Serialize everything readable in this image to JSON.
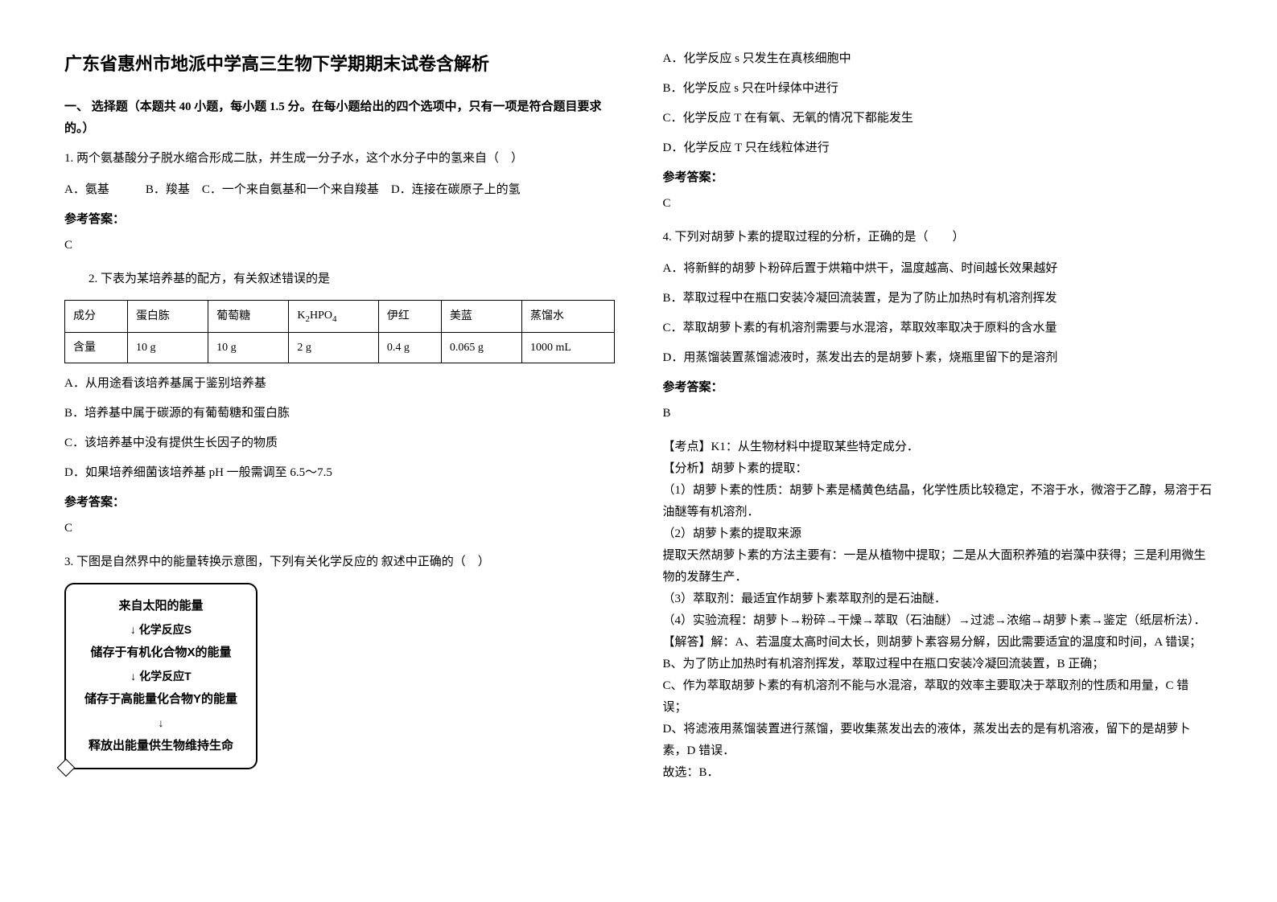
{
  "title": "广东省惠州市地派中学高三生物下学期期末试卷含解析",
  "section1_header": "一、 选择题（本题共 40 小题，每小题 1.5 分。在每小题给出的四个选项中，只有一项是符合题目要求的。）",
  "q1": {
    "text": "1. 两个氨基酸分子脱水缩合形成二肽，并生成一分子水，这个水分子中的氢来自（　）",
    "options": "A．氨基　　　B．羧基　C．一个来自氨基和一个来自羧基　D．连接在碳原子上的氢",
    "answer_label": "参考答案：",
    "answer": "C"
  },
  "q2": {
    "text": "2. 下表为某培养基的配方，有关叙述错误的是",
    "table": {
      "headers": [
        "成分",
        "蛋白胨",
        "葡萄糖",
        "K₂HPO₄",
        "伊红",
        "美蓝",
        "蒸馏水"
      ],
      "row": [
        "含量",
        "10 g",
        "10 g",
        "2 g",
        "0.4 g",
        "0.065 g",
        "1000 mL"
      ]
    },
    "optA": "A．从用途看该培养基属于鉴别培养基",
    "optB": "B．培养基中属于碳源的有葡萄糖和蛋白胨",
    "optC": "C．该培养基中没有提供生长因子的物质",
    "optD": "D．如果培养细菌该培养基 pH 一般需调至 6.5～7.5",
    "answer_label": "参考答案：",
    "answer": "C"
  },
  "q3": {
    "text": "3. 下图是自然界中的能量转换示意图，下列有关化学反应的 叙述中正确的（　）",
    "diagram": {
      "line1": "来自太阳的能量",
      "line2": "↓ 化学反应S",
      "line3": "储存于有机化合物X的能量",
      "line4": "↓ 化学反应T",
      "line5": "储存于高能量化合物Y的能量",
      "line6": "↓",
      "line7": "释放出能量供生物维持生命"
    },
    "optA": "A．化学反应 s 只发生在真核细胞中",
    "optB": "B．化学反应 s 只在叶绿体中进行",
    "optC": "C．化学反应 T 在有氧、无氧的情况下都能发生",
    "optD": "D．化学反应 T 只在线粒体进行",
    "answer_label": "参考答案：",
    "answer": "C"
  },
  "q4": {
    "text": "4. 下列对胡萝卜素的提取过程的分析，正确的是（　　）",
    "optA": "A．将新鲜的胡萝卜粉碎后置于烘箱中烘干，温度越高、时间越长效果越好",
    "optB": "B．萃取过程中在瓶口安装冷凝回流装置，是为了防止加热时有机溶剂挥发",
    "optC": "C．萃取胡萝卜素的有机溶剂需要与水混溶，萃取效率取决于原料的含水量",
    "optD": "D．用蒸馏装置蒸馏滤液时，蒸发出去的是胡萝卜素，烧瓶里留下的是溶剂",
    "answer_label": "参考答案：",
    "answer": "B",
    "analysis": {
      "kaodian": "【考点】K1：从生物材料中提取某些特定成分．",
      "fenxi_label": "【分析】胡萝卜素的提取：",
      "p1": "（1）胡萝卜素的性质：胡萝卜素是橘黄色结晶，化学性质比较稳定，不溶于水，微溶于乙醇，易溶于石油醚等有机溶剂．",
      "p2": "（2）胡萝卜素的提取来源",
      "p2_detail": "提取天然胡萝卜素的方法主要有：一是从植物中提取；二是从大面积养殖的岩藻中获得；三是利用微生物的发酵生产．",
      "p3": "（3）萃取剂：最适宜作胡萝卜素萃取剂的是石油醚．",
      "p4": "（4）实验流程：胡萝卜→粉碎→干燥→萃取（石油醚）→过滤→浓缩→胡萝卜素→鉴定（纸层析法）．",
      "jieda_label": "【解答】解：A、若温度太高时间太长，则胡萝卜素容易分解，因此需要适宜的温度和时间，A 错误；",
      "jB": "B、为了防止加热时有机溶剂挥发，萃取过程中在瓶口安装冷凝回流装置，B 正确；",
      "jC": "C、作为萃取胡萝卜素的有机溶剂不能与水混溶，萃取的效率主要取决于萃取剂的性质和用量，C 错误；",
      "jD": "D、将滤液用蒸馏装置进行蒸馏，要收集蒸发出去的液体，蒸发出去的是有机溶液，留下的是胡萝卜素，D 错误．",
      "final": "故选：B．"
    }
  }
}
